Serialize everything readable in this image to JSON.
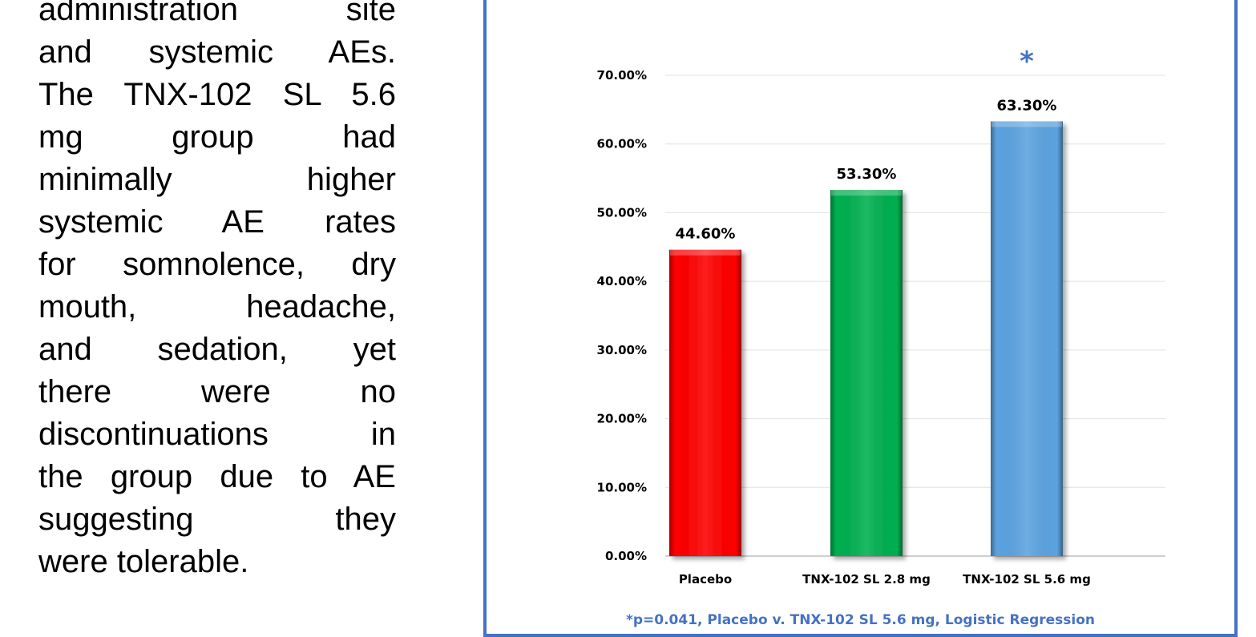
{
  "paragraph": {
    "lines": [
      "administration site",
      "and systemic AEs.",
      "The TNX-102 SL 5.6",
      "mg group had",
      "minimally higher",
      "systemic AE rates",
      "for somnolence, dry",
      "mouth, headache,",
      "and sedation, yet",
      "there were no",
      "discontinuations in",
      "the group due to AE",
      "suggesting they",
      "were tolerable."
    ]
  },
  "chart_data": {
    "type": "bar",
    "categories": [
      "Placebo",
      "TNX-102 SL 2.8 mg",
      "TNX-102 SL 5.6 mg"
    ],
    "values": [
      44.6,
      53.3,
      63.3
    ],
    "data_labels": [
      "44.60%",
      "53.30%",
      "63.30%"
    ],
    "bar_colors": [
      "#ff0000",
      "#00b050",
      "#5ba3e0"
    ],
    "y_ticks": [
      "0.00%",
      "10.00%",
      "20.00%",
      "30.00%",
      "40.00%",
      "50.00%",
      "60.00%",
      "70.00%"
    ],
    "ylim": [
      0,
      70
    ],
    "grid": true,
    "significance_marker": {
      "category_index": 2,
      "symbol": "*",
      "color": "#4472c4"
    },
    "footnote": "*p=0.041, Placebo v. TNX-102 SL 5.6 mg, Logistic Regression"
  },
  "colors": {
    "panel_border": "#4472c4",
    "footnote": "#4472c4"
  }
}
